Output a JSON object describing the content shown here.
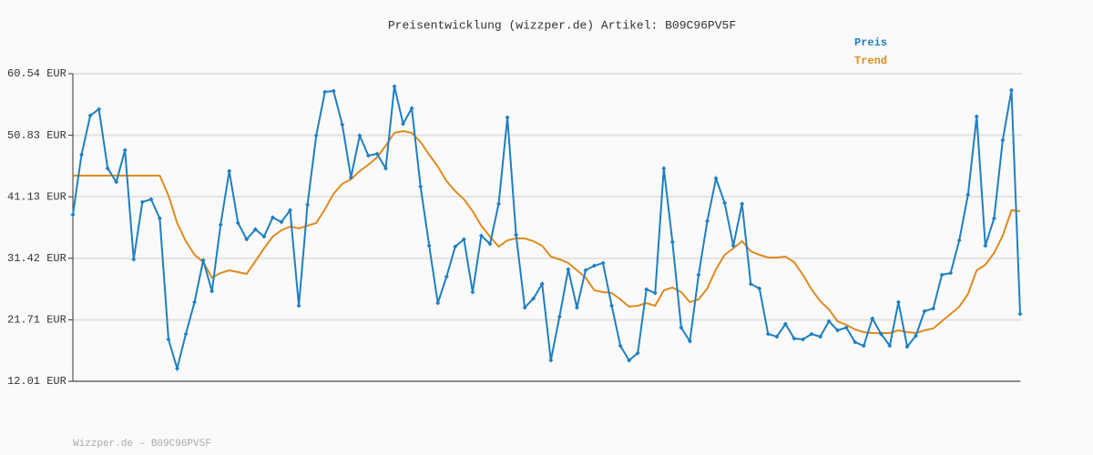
{
  "chart_data": {
    "type": "line",
    "title": "Preisentwicklung (wizzper.de) Artikel: B09C96PV5F",
    "footer": "Wizzper.de – B09C96PV5F",
    "ylim": [
      12.01,
      60.54
    ],
    "yticks": [
      {
        "value": 12.01,
        "label": "12.01 EUR"
      },
      {
        "value": 21.71,
        "label": "21.71 EUR"
      },
      {
        "value": 31.42,
        "label": "31.42 EUR"
      },
      {
        "value": 41.13,
        "label": "41.13 EUR"
      },
      {
        "value": 50.83,
        "label": "50.83 EUR"
      },
      {
        "value": 60.54,
        "label": "60.54 EUR"
      }
    ],
    "grid": true,
    "legend": "top-right",
    "series": [
      {
        "name": "Preis",
        "color": "#1f7fc1",
        "markers": true,
        "values": [
          38.29,
          47.76,
          53.94,
          54.94,
          45.61,
          43.45,
          48.48,
          31.25,
          40.3,
          40.73,
          37.71,
          18.62,
          14.02,
          19.48,
          24.5,
          31.11,
          26.23,
          36.71,
          45.18,
          36.99,
          34.41,
          35.99,
          34.84,
          37.86,
          37.14,
          39.0,
          23.93,
          39.87,
          50.78,
          57.67,
          57.81,
          52.5,
          44.17,
          50.78,
          47.62,
          47.91,
          45.61,
          58.53,
          52.64,
          55.08,
          42.74,
          33.4,
          24.36,
          28.52,
          33.26,
          34.41,
          26.08,
          34.98,
          33.69,
          40.01,
          53.65,
          35.13,
          23.64,
          25.08,
          27.37,
          15.31,
          22.21,
          29.67,
          23.64,
          29.53,
          30.25,
          30.68,
          23.93,
          17.61,
          15.31,
          16.46,
          26.51,
          25.94,
          45.61,
          33.98,
          20.48,
          18.33,
          28.81,
          37.28,
          44.03,
          40.15,
          33.4,
          40.01,
          27.37,
          26.66,
          19.48,
          19.05,
          21.06,
          18.76,
          18.62,
          19.48,
          19.05,
          21.49,
          20.05,
          20.48,
          18.19,
          17.61,
          21.92,
          19.48,
          17.61,
          24.5,
          17.47,
          19.19,
          23.07,
          23.5,
          28.81,
          29.1,
          34.27,
          41.44,
          53.79,
          33.4,
          37.71,
          50.06,
          57.96,
          22.64
        ]
      },
      {
        "name": "Trend",
        "color": "#e08a1e",
        "markers": false,
        "values": [
          44.46,
          44.46,
          44.46,
          44.46,
          44.46,
          44.46,
          44.46,
          44.46,
          44.46,
          44.46,
          44.46,
          41.3,
          36.99,
          34.12,
          31.97,
          30.82,
          28.38,
          29.1,
          29.53,
          29.24,
          28.95,
          30.96,
          32.97,
          34.84,
          35.85,
          36.42,
          36.13,
          36.56,
          36.99,
          39.15,
          41.59,
          43.17,
          43.89,
          45.18,
          46.18,
          47.33,
          49.2,
          51.21,
          51.49,
          51.21,
          49.77,
          47.76,
          45.9,
          43.6,
          42.02,
          40.73,
          38.86,
          36.56,
          34.84,
          33.26,
          34.27,
          34.55,
          34.55,
          34.12,
          33.4,
          31.68,
          31.25,
          30.68,
          29.53,
          28.38,
          26.37,
          26.08,
          25.94,
          24.93,
          23.78,
          23.93,
          24.36,
          23.93,
          26.37,
          26.8,
          26.08,
          24.5,
          24.93,
          26.66,
          29.67,
          31.97,
          32.97,
          34.12,
          32.54,
          31.97,
          31.54,
          31.54,
          31.68,
          30.82,
          28.81,
          26.51,
          24.65,
          23.35,
          21.49,
          20.91,
          20.2,
          19.76,
          19.62,
          19.62,
          19.62,
          20.05,
          19.76,
          19.62,
          20.05,
          20.34,
          21.49,
          22.64,
          23.78,
          25.8,
          29.53,
          30.39,
          32.26,
          34.98,
          39.0,
          38.86
        ]
      }
    ]
  }
}
